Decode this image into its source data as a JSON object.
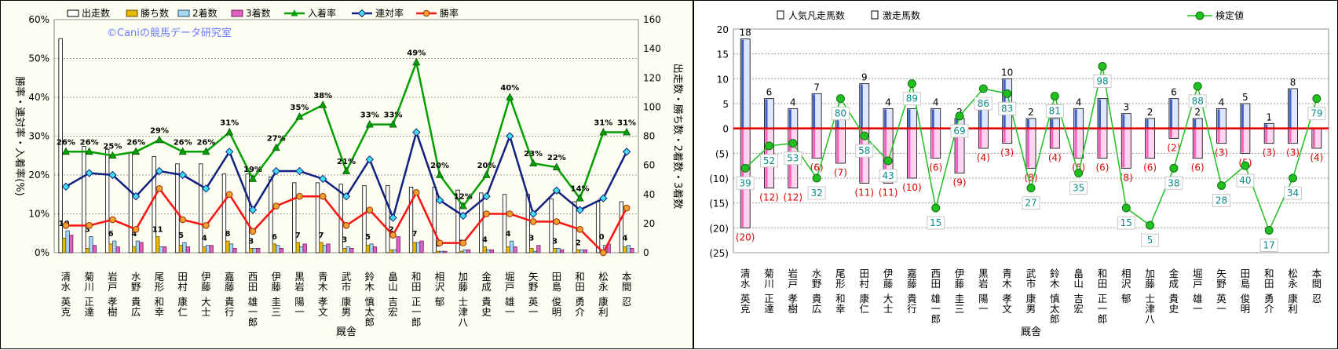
{
  "jockeys": [
    "清水　英克",
    "菊川　正達",
    "岩戸　孝樹",
    "水野　貴広",
    "尾形　和幸",
    "田村　康仁",
    "伊藤　大士",
    "嘉藤　貴行",
    "西田　雄一郎",
    "伊藤　圭三",
    "黒岩　陽一",
    "青木　孝文",
    "武市　康男",
    "鈴木　慎太郎",
    "畠山　吉宏",
    "和田　正一郎",
    "相沢　郁",
    "加藤　士津八",
    "金成　貴史",
    "堀戸　雄一",
    "矢野　英一",
    "田島　俊明",
    "和田　勇介",
    "松永　康利",
    "本間　忍"
  ],
  "left_chart": {
    "watermark": "©Caniの競馬データ研究室",
    "legend": [
      "出走数",
      "勝ち数",
      "2着数",
      "3着数",
      "入着率",
      "連対率",
      "勝率"
    ],
    "y_left_label": "勝率・連対率・入着率(%)",
    "y_right_label": "出走数・勝ち数・2着数・3着数",
    "x_label": "厩舎",
    "y_left_ticks": [
      "0%",
      "10%",
      "20%",
      "30%",
      "40%",
      "50%",
      "60%"
    ],
    "y_right_ticks": [
      "0",
      "20",
      "40",
      "60",
      "80",
      "100",
      "120",
      "140",
      "160"
    ],
    "colors": {
      "starts": "#ffffff",
      "wins": "#e8b800",
      "second": "#a8d8f0",
      "third": "#e060c0",
      "place_rate": "#00a000",
      "rentai_rate": "#102080",
      "win_rate": "#ff1010"
    }
  },
  "right_chart": {
    "legend": [
      "人気凡走馬数",
      "激走馬数",
      "検定値"
    ],
    "x_label": "厩舎",
    "y_ticks": [
      "20",
      "15",
      "10",
      "5",
      "0",
      "(5)",
      "(10)",
      "(15)",
      "(20)",
      "(25)"
    ],
    "colors": {
      "up_bar": "#4060c0",
      "down_bar": "#ff60c0",
      "line": "#20c020",
      "zero_line": "#e00000",
      "neg_label": "#e00000"
    }
  },
  "chart_data": [
    {
      "type": "bar",
      "categories": [
        "清水　英克",
        "菊川　正達",
        "岩戸　孝樹",
        "水野　貴広",
        "尾形　和幸",
        "田村　康仁",
        "伊藤　大士",
        "嘉藤　貴行",
        "西田　雄一郎",
        "伊藤　圭三",
        "黒岩　陽一",
        "青木　孝文",
        "武市　康男",
        "鈴木　慎太郎",
        "畠山　吉宏",
        "和田　正一郎",
        "相沢　郁",
        "加藤　士津八",
        "金成　貴史",
        "堀戸　雄一",
        "矢野　英一",
        "田島　俊明",
        "和田　勇介",
        "松永　康利",
        "本間　忍"
      ],
      "xlabel": "厩舎",
      "ylabel": "勝率・連対率・入着率(%)",
      "y2label": "出走数・勝ち数・2着数・3着数",
      "ylim": [
        0,
        60
      ],
      "y2lim": [
        0,
        160
      ],
      "series": [
        {
          "name": "出走数",
          "axis": "right",
          "type": "bar",
          "values": [
            147,
            73,
            71,
            69,
            66,
            61,
            61,
            54,
            54,
            52,
            48,
            48,
            47,
            46,
            46,
            45,
            45,
            43,
            41,
            40,
            40,
            37,
            35,
            35,
            35
          ]
        },
        {
          "name": "勝ち数",
          "axis": "right",
          "type": "bar",
          "values": [
            10,
            3,
            6,
            4,
            11,
            5,
            4,
            8,
            3,
            6,
            7,
            7,
            3,
            5,
            2,
            7,
            1,
            1,
            4,
            4,
            3,
            3,
            2,
            0,
            4
          ]
        },
        {
          "name": "2着数",
          "axis": "right",
          "type": "bar",
          "values": [
            15,
            11,
            8,
            8,
            4,
            7,
            5,
            6,
            3,
            5,
            4,
            5,
            4,
            6,
            2,
            7,
            1,
            2,
            2,
            8,
            1,
            3,
            2,
            5,
            5
          ]
        },
        {
          "name": "3着数",
          "axis": "right",
          "type": "bar",
          "values": [
            12,
            5,
            4,
            7,
            4,
            4,
            5,
            3,
            3,
            3,
            6,
            6,
            3,
            4,
            11,
            8,
            1,
            2,
            2,
            4,
            5,
            2,
            2,
            6,
            3
          ]
        },
        {
          "name": "入着率",
          "axis": "left",
          "type": "line",
          "values": [
            26,
            26,
            25,
            26,
            29,
            26,
            26,
            31,
            19,
            27,
            35,
            38,
            21,
            33,
            33,
            49,
            20,
            12,
            20,
            40,
            23,
            22,
            14,
            31,
            31
          ]
        },
        {
          "name": "連対率",
          "axis": "left",
          "type": "line",
          "values": [
            17,
            20.5,
            20,
            14.5,
            21,
            20,
            16.5,
            26,
            11,
            21,
            21,
            19,
            14.5,
            24,
            9,
            31,
            13.5,
            9.5,
            14.5,
            30,
            10,
            16,
            11,
            14,
            26
          ]
        },
        {
          "name": "勝率",
          "axis": "left",
          "type": "line",
          "values": [
            7,
            7,
            8.5,
            6,
            16.5,
            8.5,
            7,
            15,
            5.5,
            12,
            14.5,
            14.5,
            7,
            11,
            4.5,
            15.5,
            2.5,
            2.5,
            10,
            10,
            8,
            8,
            6,
            0,
            11.5
          ]
        }
      ],
      "data_labels": {
        "入着率": [
          "26%",
          "26%",
          "25%",
          "26%",
          "29%",
          "26%",
          "26%",
          "31%",
          "19%",
          "27%",
          "35%",
          "38%",
          "21%",
          "33%",
          "33%",
          "49%",
          "20%",
          "12%",
          "20%",
          "40%",
          "23%",
          "22%",
          "14%",
          "31%",
          "31%"
        ],
        "勝ち数": [
          "10",
          "3",
          "6",
          "4",
          "11",
          "5",
          "4",
          "8",
          "3",
          "6",
          "7",
          "7",
          "3",
          "5",
          "2",
          "7",
          "1",
          "1",
          "4",
          "4",
          "3",
          "3",
          "2",
          "0",
          "4"
        ]
      }
    },
    {
      "type": "bar",
      "categories": [
        "清水　英克",
        "菊川　正達",
        "岩戸　孝樹",
        "水野　貴広",
        "尾形　和幸",
        "田村　康仁",
        "伊藤　大士",
        "嘉藤　貴行",
        "西田　雄一郎",
        "伊藤　圭三",
        "黒岩　陽一",
        "青木　孝文",
        "武市　康男",
        "鈴木　慎太郎",
        "畠山　吉宏",
        "和田　正一郎",
        "相沢　郁",
        "加藤　士津八",
        "金成　貴史",
        "堀戸　雄一",
        "矢野　英一",
        "田島　俊明",
        "和田　勇介",
        "松永　康利",
        "本間　忍"
      ],
      "xlabel": "厩舎",
      "ylim": [
        -25,
        20
      ],
      "series": [
        {
          "name": "激走馬数",
          "type": "bar",
          "values": [
            18,
            6,
            4,
            7,
            2,
            9,
            4,
            4,
            4,
            2,
            4,
            10,
            2,
            2,
            4,
            6,
            3,
            2,
            6,
            2,
            4,
            5,
            1,
            8,
            0
          ]
        },
        {
          "name": "人気凡走馬数",
          "type": "bar",
          "values": [
            -20,
            -12,
            -12,
            -6,
            -7,
            -11,
            -11,
            -10,
            -6,
            -9,
            -4,
            -3,
            -8,
            -4,
            -6,
            -6,
            -8,
            -6,
            -2,
            -6,
            -3,
            -5,
            -3,
            -3,
            -4
          ]
        },
        {
          "name": "検定値",
          "type": "line",
          "values": [
            -8,
            -3.5,
            -3,
            -10,
            6,
            -1.5,
            -6.5,
            9,
            -16,
            2.5,
            8,
            7,
            -12,
            6.5,
            -9,
            12.5,
            -16,
            -19.5,
            -8,
            8.5,
            -11.5,
            -7.5,
            -20.5,
            -10,
            6
          ]
        }
      ],
      "top_labels": [
        "18",
        "6",
        "4",
        "7",
        "",
        "9",
        "4",
        "",
        "4",
        "2",
        "",
        "10",
        "2",
        "",
        "4",
        "",
        "3",
        "2",
        "6",
        "2",
        "4",
        "5",
        "1",
        "8",
        ""
      ],
      "bottom_labels": [
        "(20)",
        "(12)",
        "(12)",
        "(6)",
        "(7)",
        "(11)",
        "(11)",
        "(10)",
        "(6)",
        "(9)",
        "(4)",
        "(3)",
        "(8)",
        "(4)",
        "(6)",
        "(6)",
        "(8)",
        "(6)",
        "(2)",
        "(6)",
        "(3)",
        "(5)",
        "(3)",
        "(3)",
        "(4)"
      ],
      "score_labels": [
        "39",
        "52",
        "53",
        "32",
        "80",
        "58",
        "43",
        "89",
        "15",
        "69",
        "86",
        "83",
        "27",
        "81",
        "35",
        "98",
        "15",
        "5",
        "38",
        "88",
        "28",
        "40",
        "17",
        "34",
        "79"
      ]
    }
  ]
}
